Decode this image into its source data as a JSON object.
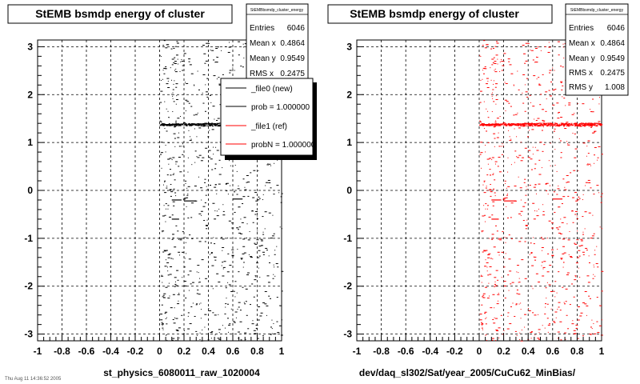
{
  "footer": "Thu Aug 11 14:36:52 2005",
  "chart_data": [
    {
      "type": "scatter",
      "title": "StEMB bsmdp energy of cluster",
      "stats_name": "StEMBbsmdp_cluster_energy",
      "stats": [
        {
          "label": "Entries",
          "value": "6046"
        },
        {
          "label": "Mean x",
          "value": "0.4864"
        },
        {
          "label": "Mean y",
          "value": "0.9549"
        },
        {
          "label": "RMS x",
          "value": "0.2475"
        }
      ],
      "xlabel": "st_physics_6080011_raw_1020004",
      "xlim": [
        -1,
        1
      ],
      "ylim": [
        -3.14,
        3.14
      ],
      "xticks": [
        "-1",
        "-0.8",
        "-0.6",
        "-0.4",
        "-0.2",
        "0",
        "0.2",
        "0.4",
        "0.6",
        "0.8",
        "1"
      ],
      "yticks": [
        "-3",
        "-2",
        "-1",
        "0",
        "1",
        "2",
        "3"
      ],
      "grid": true,
      "legend_position": "top-right",
      "legend": [
        {
          "label": "_file0 (new)",
          "color": "#000000"
        },
        {
          "label": "prob = 1.000000",
          "color": "#000000"
        },
        {
          "label": "_file1 (ref)",
          "color": "#ff0000"
        },
        {
          "label": "probN = 1.000000",
          "color": "#ff0000"
        }
      ],
      "series": [
        {
          "color": "#000000",
          "x_range": [
            0,
            1
          ],
          "y_range": [
            -3.14,
            3.14
          ],
          "band_y": 1.38
        }
      ]
    },
    {
      "type": "scatter",
      "title": "StEMB bsmdp energy of cluster",
      "stats_name": "StEMBbsmdp_cluster_energy",
      "stats": [
        {
          "label": "Entries",
          "value": "6046"
        },
        {
          "label": "Mean x",
          "value": "0.4864"
        },
        {
          "label": "Mean y",
          "value": "0.9549"
        },
        {
          "label": "RMS x",
          "value": "0.2475"
        },
        {
          "label": "RMS y",
          "value": "1.008"
        }
      ],
      "xlabel": "dev/daq_sl302/Sat/year_2005/CuCu62_MinBias/",
      "xlim": [
        -1,
        1
      ],
      "ylim": [
        -3.14,
        3.14
      ],
      "xticks": [
        "-1",
        "-0.8",
        "-0.6",
        "-0.4",
        "-0.2",
        "0",
        "0.2",
        "0.4",
        "0.6",
        "0.8",
        "1"
      ],
      "yticks": [
        "-3",
        "-2",
        "-1",
        "0",
        "1",
        "2",
        "3"
      ],
      "grid": true,
      "series": [
        {
          "color": "#ff0000",
          "x_range": [
            0,
            1
          ],
          "y_range": [
            -3.14,
            3.14
          ],
          "band_y": 1.38
        }
      ]
    }
  ]
}
